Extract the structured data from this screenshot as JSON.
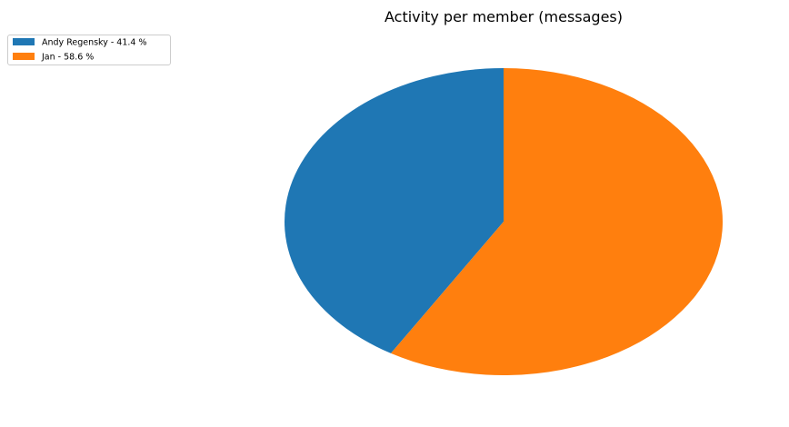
{
  "chart_data": {
    "type": "pie",
    "title": "Activity per member (messages)",
    "slices": [
      {
        "label": "Andy Regensky - 41.4 %",
        "value": 41.4,
        "color": "#1f77b4"
      },
      {
        "label": "Jan - 58.6 %",
        "value": 58.6,
        "color": "#ff7f0e"
      }
    ],
    "legend_position": "top-left",
    "start_angle_deg": 90,
    "direction": "counterclockwise"
  }
}
